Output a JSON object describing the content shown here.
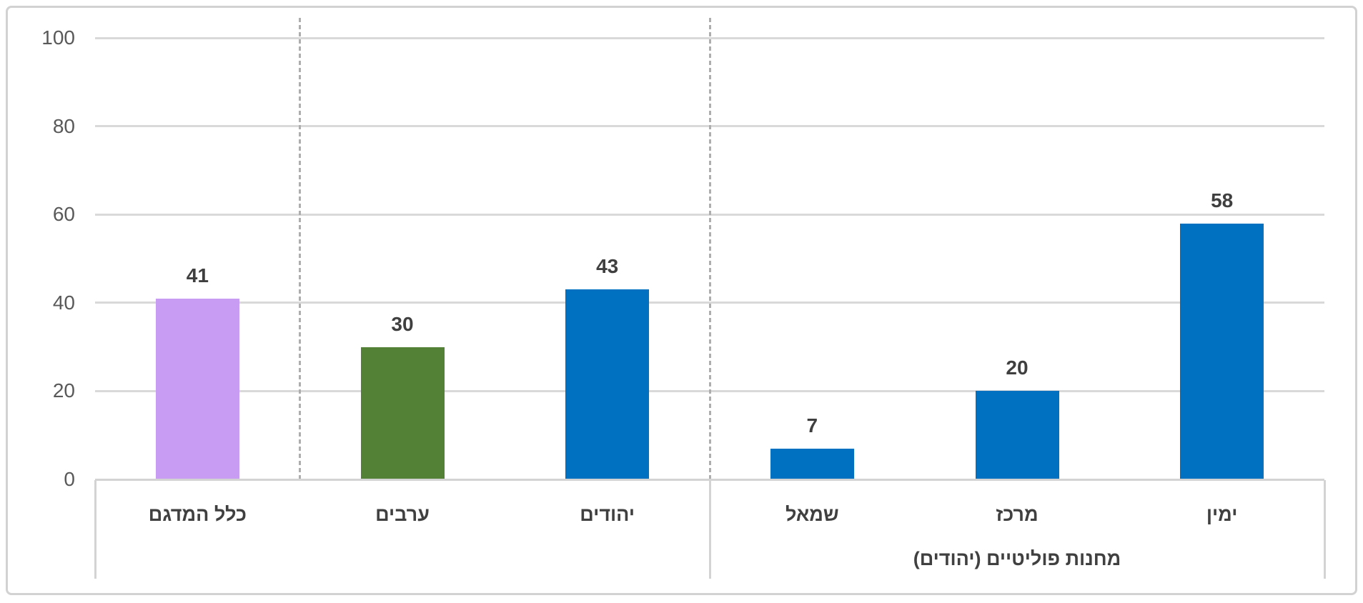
{
  "chart_data": {
    "type": "bar",
    "categories": [
      "כלל המדגם",
      "ערבים",
      "יהודים",
      "שמאל",
      "מרכז",
      "ימין"
    ],
    "values": [
      41,
      30,
      43,
      7,
      20,
      58
    ],
    "data_labels": [
      "41",
      "30",
      "43",
      "7",
      "20",
      "58"
    ],
    "bar_colors": [
      "#c89cf3",
      "#538135",
      "#0070c0",
      "#0070c0",
      "#0070c0",
      "#0070c0"
    ],
    "title": "",
    "xlabel": "",
    "ylabel": "",
    "ylim": [
      0,
      100
    ],
    "y_ticks": [
      "0",
      "20",
      "40",
      "60",
      "80",
      "100"
    ],
    "grid": "horizontal",
    "legend": "none",
    "separators_after_category_index": [
      0,
      2
    ],
    "category_groups": [
      {
        "label": "מחנות פוליטיים (יהודים)",
        "from_category_index": 3,
        "to_category_index": 5
      }
    ]
  },
  "colors": {
    "bar_blue": "#0070c0",
    "bar_green": "#538135",
    "bar_purple": "#c89cf3",
    "gridline": "#d9d9d9",
    "axis_line": "#d3d3d3",
    "dashed_separator": "#aeaeae",
    "tick_text": "#595959",
    "label_text": "#404040",
    "frame_border": "#d2d2d2",
    "background": "#ffffff"
  }
}
